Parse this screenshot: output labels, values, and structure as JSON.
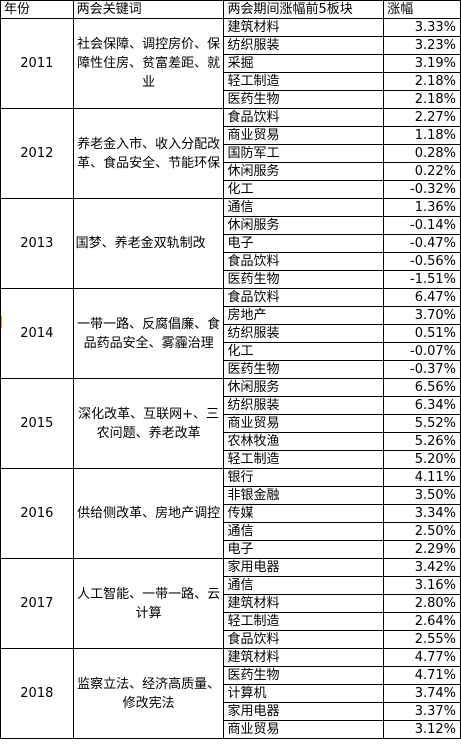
{
  "headers": {
    "year": "年份",
    "keywords": "两会关键词",
    "sectors": "两会期间涨幅前5板块",
    "change": "涨幅"
  },
  "rows": [
    {
      "year": "2011",
      "keywords": "社会保障、调控房价、保障性住房、贫富差距、就业",
      "sectors": [
        {
          "name": "建筑材料",
          "change": "3.33%"
        },
        {
          "name": "纺织服装",
          "change": "3.23%"
        },
        {
          "name": "采掘",
          "change": "3.19%"
        },
        {
          "name": "轻工制造",
          "change": "2.18%"
        },
        {
          "name": "医药生物",
          "change": "2.18%"
        }
      ]
    },
    {
      "year": "2012",
      "keywords": "养老金入市、收入分配改革、食品安全、节能环保",
      "sectors": [
        {
          "name": "食品饮料",
          "change": "2.27%"
        },
        {
          "name": "商业贸易",
          "change": "1.18%"
        },
        {
          "name": "国防军工",
          "change": "0.28%"
        },
        {
          "name": "休闲服务",
          "change": "0.22%"
        },
        {
          "name": "化工",
          "change": "-0.32%"
        }
      ]
    },
    {
      "year": "2013",
      "keywords": "国梦、养老金双轨制改",
      "sectors": [
        {
          "name": "通信",
          "change": "1.36%"
        },
        {
          "name": "休闲服务",
          "change": "-0.14%"
        },
        {
          "name": "电子",
          "change": "-0.47%"
        },
        {
          "name": "食品饮料",
          "change": "-0.56%"
        },
        {
          "name": "医药生物",
          "change": "-1.51%"
        }
      ]
    },
    {
      "year": "2014",
      "keywords": "一带一路、反腐倡廉、食品药品安全、雾霾治理",
      "sectors": [
        {
          "name": "食品饮料",
          "change": "6.47%"
        },
        {
          "name": "房地产",
          "change": "3.70%"
        },
        {
          "name": "纺织服装",
          "change": "0.51%"
        },
        {
          "name": "化工",
          "change": "-0.07%"
        },
        {
          "name": "医药生物",
          "change": "-0.37%"
        }
      ]
    },
    {
      "year": "2015",
      "keywords": "深化改革、互联网+、三农问题、养老改革",
      "sectors": [
        {
          "name": "休闲服务",
          "change": "6.56%"
        },
        {
          "name": "纺织服装",
          "change": "6.34%"
        },
        {
          "name": "商业贸易",
          "change": "5.52%"
        },
        {
          "name": "农林牧渔",
          "change": "5.26%"
        },
        {
          "name": "轻工制造",
          "change": "5.20%"
        }
      ]
    },
    {
      "year": "2016",
      "keywords": "供给侧改革、房地产调控",
      "sectors": [
        {
          "name": "银行",
          "change": "4.11%"
        },
        {
          "name": "非银金融",
          "change": "3.50%"
        },
        {
          "name": "传媒",
          "change": "3.34%"
        },
        {
          "name": "通信",
          "change": "2.50%"
        },
        {
          "name": "电子",
          "change": "2.29%"
        }
      ]
    },
    {
      "year": "2017",
      "keywords": "人工智能、一带一路、云计算",
      "sectors": [
        {
          "name": "家用电器",
          "change": "3.42%"
        },
        {
          "name": "通信",
          "change": "3.16%"
        },
        {
          "name": "建筑材料",
          "change": "2.80%"
        },
        {
          "name": "轻工制造",
          "change": "2.64%"
        },
        {
          "name": "食品饮料",
          "change": "2.55%"
        }
      ]
    },
    {
      "year": "2018",
      "keywords": "监察立法、经济高质量、修改宪法",
      "sectors": [
        {
          "name": "建筑材料",
          "change": "4.77%"
        },
        {
          "name": "医药生物",
          "change": "4.71%"
        },
        {
          "name": "计算机",
          "change": "3.74%"
        },
        {
          "name": "家用电器",
          "change": "3.37%"
        },
        {
          "name": "商业贸易",
          "change": "3.12%"
        }
      ]
    }
  ]
}
